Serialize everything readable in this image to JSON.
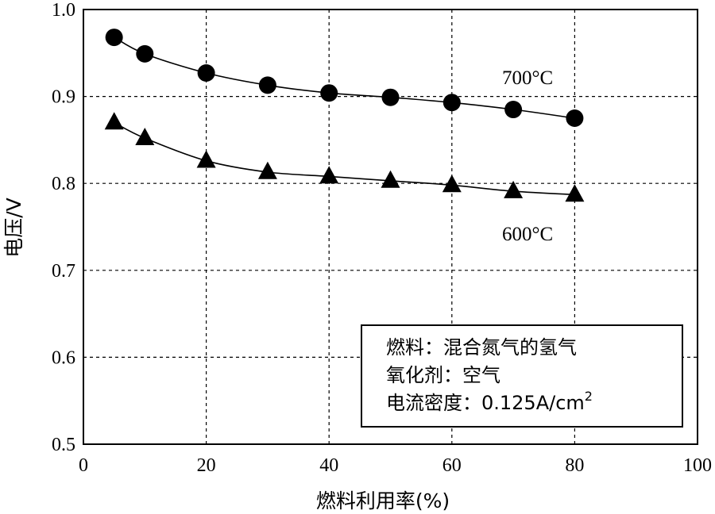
{
  "chart_data": {
    "type": "line",
    "xlabel": "燃料利用率(%)",
    "ylabel": "电压/V",
    "xlim": [
      0,
      100
    ],
    "ylim": [
      0.5,
      1.0
    ],
    "xticks": [
      "0",
      "20",
      "40",
      "60",
      "80",
      "100"
    ],
    "yticks": [
      "0.5",
      "0.6",
      "0.7",
      "0.8",
      "0.9",
      "1.0"
    ],
    "grid": true,
    "x": [
      5,
      10,
      20,
      30,
      40,
      50,
      60,
      70,
      80
    ],
    "series": [
      {
        "name": "700°C",
        "marker": "circle",
        "values": [
          0.968,
          0.949,
          0.927,
          0.913,
          0.904,
          0.899,
          0.893,
          0.885,
          0.875
        ]
      },
      {
        "name": "600°C",
        "marker": "triangle",
        "values": [
          0.87,
          0.852,
          0.826,
          0.813,
          0.808,
          0.803,
          0.798,
          0.791,
          0.787
        ]
      }
    ],
    "annotation": {
      "line1": "燃料：混合氮气的氢气",
      "line2": "氧化剂：空气",
      "line3_prefix": "电流密度：0.125A/cm",
      "line3_sup": "2"
    }
  }
}
